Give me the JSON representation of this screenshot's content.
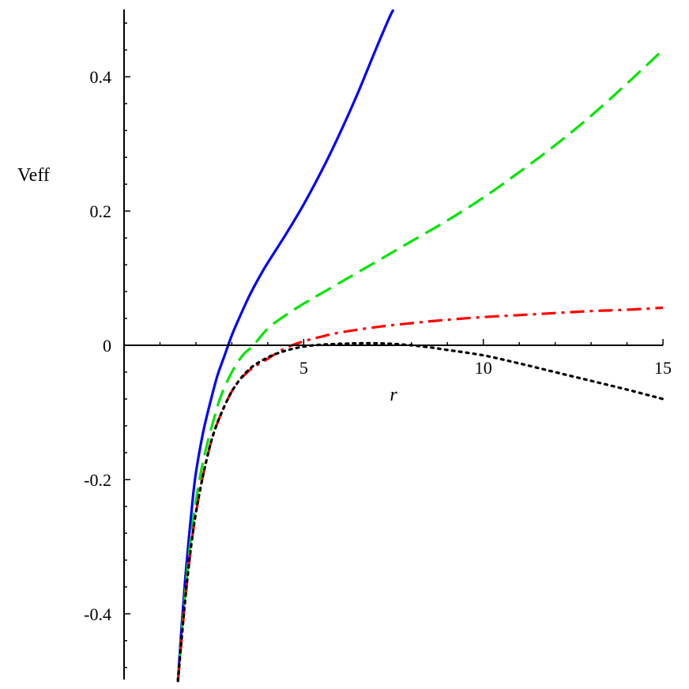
{
  "chart_data": {
    "type": "line",
    "xlabel": "r",
    "ylabel": "Veff",
    "xlim": [
      0,
      15
    ],
    "ylim": [
      -0.5,
      0.5
    ],
    "x_ticks": [
      5,
      10,
      15
    ],
    "x_tick_labels": [
      "5",
      "10",
      "15"
    ],
    "y_ticks": [
      -0.4,
      -0.2,
      0,
      0.2,
      0.4
    ],
    "y_tick_labels": [
      "-0.4",
      "-0.2",
      "0",
      "0.2",
      "0.4"
    ],
    "grid": false,
    "legend": "none",
    "series": [
      {
        "color": "#0000ff",
        "style": "solid",
        "x": [
          1.5,
          1.6,
          1.7,
          1.8,
          1.9,
          2.0,
          2.2,
          2.4,
          2.6,
          2.8,
          3.0,
          3.2,
          3.5,
          3.8,
          4.0,
          4.5,
          5.0,
          5.5,
          6.0,
          6.5,
          7.0,
          7.4,
          7.5
        ],
        "y": [
          -0.5,
          -0.42,
          -0.35,
          -0.29,
          -0.235,
          -0.19,
          -0.13,
          -0.085,
          -0.045,
          -0.015,
          0.015,
          0.04,
          0.075,
          0.105,
          0.123,
          0.165,
          0.21,
          0.26,
          0.315,
          0.375,
          0.44,
          0.49,
          0.5
        ]
      },
      {
        "color": "#00e600",
        "style": "dashed",
        "x": [
          1.5,
          1.7,
          1.9,
          2.1,
          2.3,
          2.5,
          2.7,
          3.0,
          3.3,
          3.6,
          4.0,
          4.5,
          5.0,
          6.0,
          7.0,
          8.0,
          9.0,
          10.0,
          11.0,
          12.0,
          13.0,
          14.0,
          15.0
        ],
        "y": [
          -0.5,
          -0.37,
          -0.27,
          -0.2,
          -0.15,
          -0.11,
          -0.075,
          -0.04,
          -0.015,
          0.0,
          0.025,
          0.045,
          0.062,
          0.093,
          0.124,
          0.155,
          0.186,
          0.22,
          0.258,
          0.298,
          0.342,
          0.39,
          0.44
        ]
      },
      {
        "color": "#ff0000",
        "style": "dashdot",
        "x": [
          1.5,
          1.7,
          1.9,
          2.1,
          2.3,
          2.5,
          2.8,
          3.1,
          3.5,
          4.0,
          4.5,
          5.0,
          5.5,
          6.0,
          7.0,
          8.0,
          9.0,
          10.0,
          11.0,
          12.0,
          13.0,
          14.0,
          15.0
        ],
        "y": [
          -0.5,
          -0.38,
          -0.285,
          -0.22,
          -0.17,
          -0.13,
          -0.09,
          -0.06,
          -0.037,
          -0.02,
          -0.004,
          0.006,
          0.013,
          0.019,
          0.027,
          0.033,
          0.038,
          0.042,
          0.045,
          0.048,
          0.051,
          0.053,
          0.056
        ]
      },
      {
        "color": "#000000",
        "style": "dotted",
        "x": [
          1.5,
          1.7,
          1.9,
          2.1,
          2.3,
          2.5,
          2.8,
          3.1,
          3.5,
          4.0,
          4.5,
          5.0,
          5.5,
          6.0,
          6.5,
          7.0,
          7.5,
          8.0,
          8.5,
          9.0,
          10.0,
          11.0,
          12.0,
          13.0,
          14.0,
          15.0
        ],
        "y": [
          -0.5,
          -0.38,
          -0.285,
          -0.22,
          -0.17,
          -0.13,
          -0.09,
          -0.06,
          -0.035,
          -0.018,
          -0.008,
          -0.002,
          0.001,
          0.002,
          0.003,
          0.003,
          0.002,
          0.0,
          -0.003,
          -0.007,
          -0.015,
          -0.027,
          -0.04,
          -0.053,
          -0.066,
          -0.08
        ]
      }
    ]
  }
}
